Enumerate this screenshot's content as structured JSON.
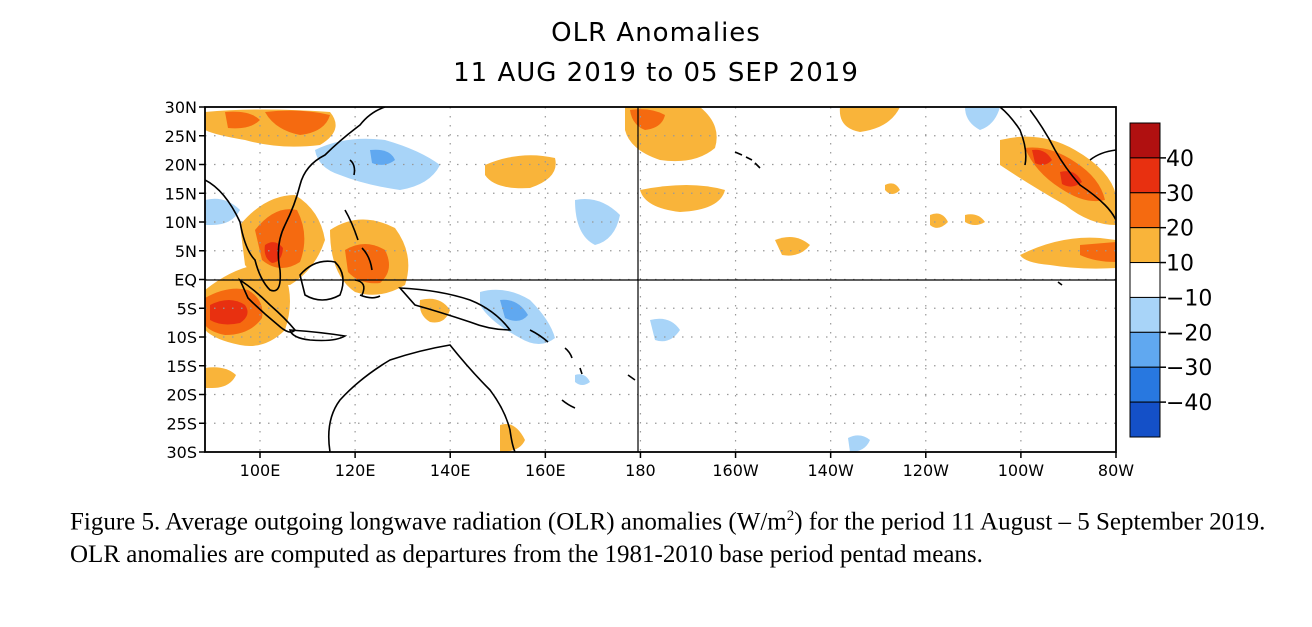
{
  "title": "OLR Anomalies",
  "subtitle": "11 AUG 2019 to 05 SEP 2019",
  "axes": {
    "lat_labels": [
      "30N",
      "25N",
      "20N",
      "15N",
      "10N",
      "5N",
      "EQ",
      "5S",
      "10S",
      "15S",
      "20S",
      "25S",
      "30S"
    ],
    "lon_labels": [
      "100E",
      "120E",
      "140E",
      "160E",
      "180",
      "160W",
      "140W",
      "120W",
      "100W",
      "80W"
    ]
  },
  "colorbar": {
    "labels": [
      "40",
      "30",
      "20",
      "10",
      "−10",
      "−20",
      "−30",
      "−40"
    ],
    "colors": [
      "#b01010",
      "#e83010",
      "#f56a10",
      "#f9b43a",
      "#ffffff",
      "#a8d4f8",
      "#60a8f0",
      "#2878e0",
      "#1450c8"
    ]
  },
  "colors": {
    "pos10": "#f9b43a",
    "pos20": "#f56a10",
    "pos30": "#e83010",
    "pos40": "#b01010",
    "neg10": "#a8d4f8",
    "neg20": "#60a8f0",
    "neg30": "#2878e0"
  },
  "caption": {
    "part1": "Figure 5. Average outgoing longwave radiation (OLR) anomalies (W/m",
    "sup": "2",
    "part2": ") for the period 11 August  – 5 September 2019.  OLR anomalies are computed as departures from the 1981-2010 base period pentad means."
  }
}
